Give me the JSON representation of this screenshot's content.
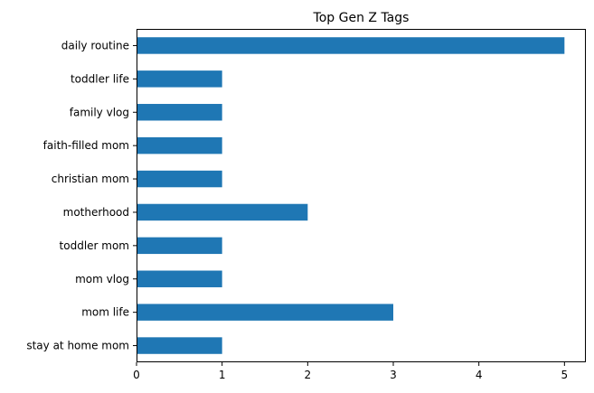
{
  "chart_data": {
    "type": "bar",
    "orientation": "horizontal",
    "title": "Top Gen Z Tags",
    "xlabel": "",
    "ylabel": "",
    "categories": [
      "daily routine",
      "toddler life",
      "family vlog",
      "faith-filled mom",
      "christian mom",
      "motherhood",
      "toddler mom",
      "mom vlog",
      "mom life",
      "stay at home mom"
    ],
    "values": [
      5,
      1,
      1,
      1,
      1,
      2,
      1,
      1,
      3,
      1
    ],
    "xlim": [
      0,
      5.25
    ],
    "xticks": [
      "0",
      "1",
      "2",
      "3",
      "4",
      "5"
    ],
    "grid": false,
    "legend": "none",
    "bar_color": "#1f77b4"
  }
}
